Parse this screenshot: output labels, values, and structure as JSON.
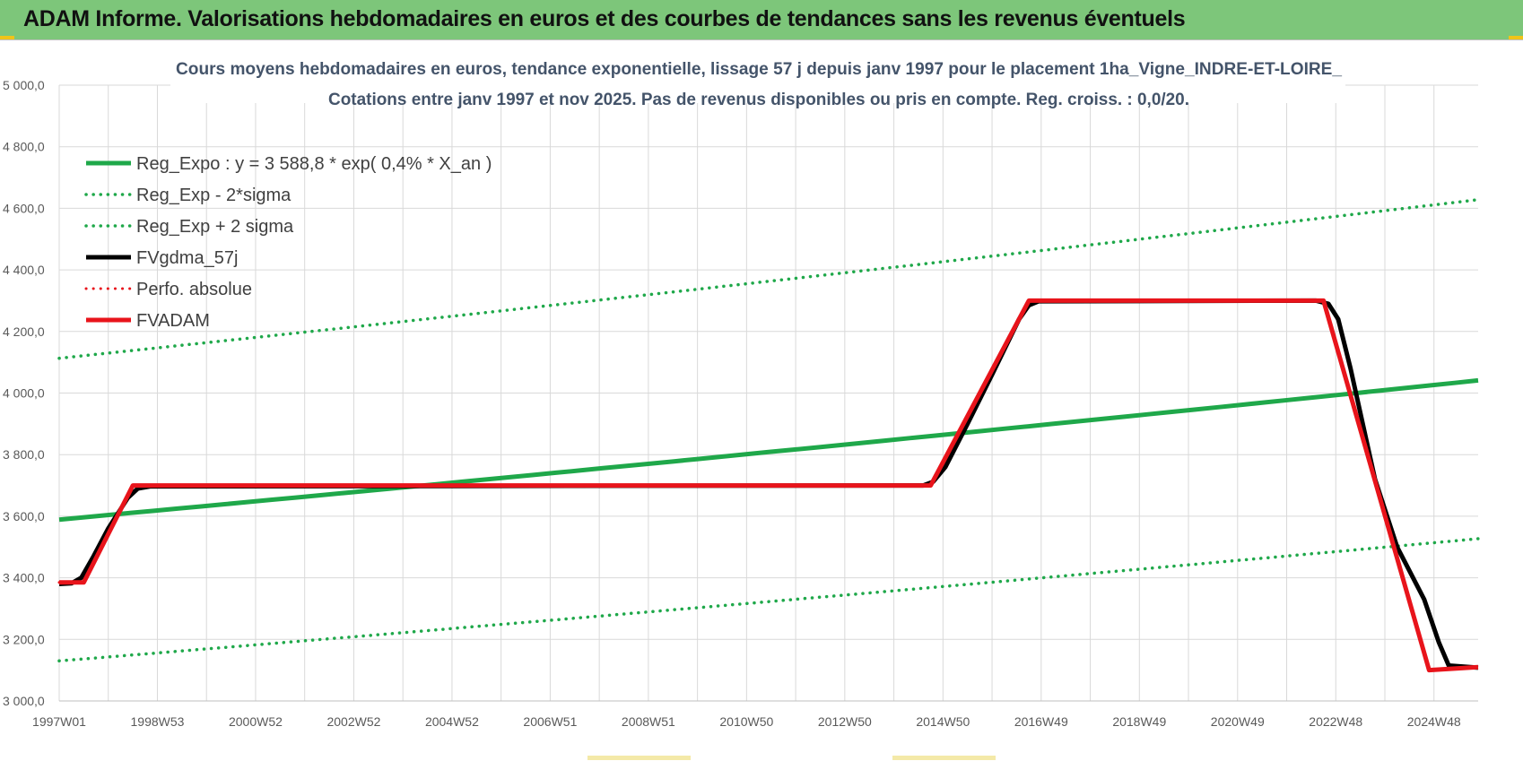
{
  "header": {
    "title": "ADAM Informe. Valorisations hebdomadaires en euros et des courbes de tendances sans les revenus éventuels"
  },
  "colors": {
    "header_bg": "#7dc67a",
    "trend_green": "#1fa84a",
    "fv_red": "#e8141b",
    "fv_black": "#000000",
    "grid": "#d9d9d9"
  },
  "chart_data": {
    "type": "line",
    "title": "Cours moyens hebdomadaires en euros, tendance exponentielle, lissage 57 j depuis janv 1997 pour le placement 1ha_Vigne_INDRE-ET-LOIRE_",
    "subtitle": "Cotations entre janv 1997 et nov 2025. Pas de revenus disponibles ou pris en compte. Reg. croiss. : 0,0/20.",
    "xlabel": "",
    "ylabel": "",
    "x_range": [
      1997.0,
      2025.9
    ],
    "ylim": [
      3000,
      5000
    ],
    "y_ticks": [
      3000,
      3200,
      3400,
      3600,
      3800,
      4000,
      4200,
      4400,
      4600,
      4800,
      5000
    ],
    "y_tick_labels": [
      "3 000,0",
      "3 200,0",
      "3 400,0",
      "3 600,0",
      "3 800,0",
      "4 000,0",
      "4 200,0",
      "4 400,0",
      "4 600,0",
      "4 800,0",
      "5 000,0"
    ],
    "x_ticks": [
      {
        "label": "1997W01",
        "x": 1997.0
      },
      {
        "label": "1998W53",
        "x": 1999.0
      },
      {
        "label": "2000W52",
        "x": 2001.0
      },
      {
        "label": "2002W52",
        "x": 2003.0
      },
      {
        "label": "2004W52",
        "x": 2005.0
      },
      {
        "label": "2006W51",
        "x": 2007.0
      },
      {
        "label": "2008W51",
        "x": 2009.0
      },
      {
        "label": "2010W50",
        "x": 2011.0
      },
      {
        "label": "2012W50",
        "x": 2013.0
      },
      {
        "label": "2014W50",
        "x": 2015.0
      },
      {
        "label": "2016W49",
        "x": 2017.0
      },
      {
        "label": "2018W49",
        "x": 2019.0
      },
      {
        "label": "2020W49",
        "x": 2021.0
      },
      {
        "label": "2022W48",
        "x": 2023.0
      },
      {
        "label": "2024W48",
        "x": 2025.0
      }
    ],
    "grid": true,
    "legend_position": "top-left",
    "series": [
      {
        "name": "Reg_Expo : y = 3 588,8 * exp( 0,4% *  X_an )",
        "color": "#1fa84a",
        "style": "solid",
        "width": 5,
        "x": [
          1997.0,
          2025.9
        ],
        "values": [
          3589,
          4041
        ]
      },
      {
        "name": "Reg_Exp - 2*sigma",
        "color": "#1fa84a",
        "style": "dotted",
        "width": 3.5,
        "x": [
          1997.0,
          2025.9
        ],
        "values": [
          3130,
          3527
        ]
      },
      {
        "name": "Reg_Exp + 2 sigma",
        "color": "#1fa84a",
        "style": "dotted",
        "width": 3.5,
        "x": [
          1997.0,
          2025.9
        ],
        "values": [
          4113,
          4628
        ]
      },
      {
        "name": "FVgdma_57j",
        "color": "#000000",
        "style": "solid",
        "width": 5,
        "x": [
          1997.0,
          1997.25,
          1997.45,
          1997.7,
          1998.0,
          1998.4,
          1998.6,
          1998.85,
          2014.6,
          2014.8,
          2015.05,
          2015.5,
          2016.0,
          2016.55,
          2016.75,
          2016.95,
          2022.6,
          2022.85,
          2023.05,
          2023.3,
          2023.8,
          2024.25,
          2024.8,
          2025.1,
          2025.3,
          2025.9
        ],
        "values": [
          3380,
          3382,
          3400,
          3470,
          3560,
          3660,
          3690,
          3697,
          3700,
          3712,
          3760,
          3900,
          4060,
          4240,
          4285,
          4298,
          4300,
          4290,
          4240,
          4080,
          3720,
          3500,
          3330,
          3190,
          3115,
          3108
        ]
      },
      {
        "name": "Perfo. absolue",
        "color": "#e8141b",
        "style": "dotted",
        "width": 3,
        "x": [
          1997.0,
          1997.5,
          1998.5,
          2014.75,
          2016.75,
          2022.75,
          2024.9,
          2025.9
        ],
        "values": [
          3385,
          3385,
          3700,
          3700,
          4300,
          4300,
          3100,
          3110
        ]
      },
      {
        "name": "FVADAM",
        "color": "#e8141b",
        "style": "solid",
        "width": 5,
        "x": [
          1997.0,
          1997.5,
          1998.5,
          2014.75,
          2016.75,
          2022.75,
          2024.9,
          2025.9
        ],
        "values": [
          3385,
          3385,
          3700,
          3700,
          4300,
          4300,
          3100,
          3110
        ]
      }
    ]
  }
}
